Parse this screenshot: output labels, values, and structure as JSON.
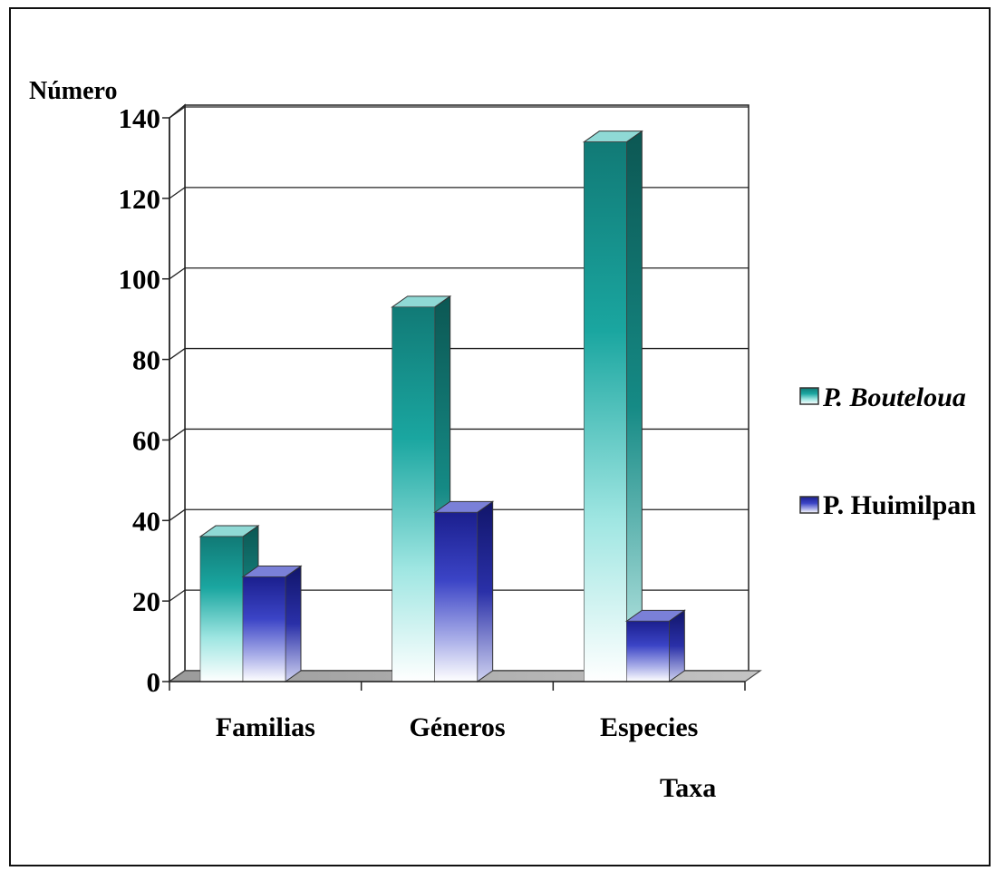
{
  "chart_data": {
    "type": "bar",
    "title": "",
    "ylabel": "Número",
    "xlabel": "Taxa",
    "categories": [
      "Familias",
      "Géneros",
      "Especies"
    ],
    "series": [
      {
        "name": "P. Bouteloua",
        "values": [
          36,
          93,
          134
        ],
        "color": "#1a8c86"
      },
      {
        "name": "P. Huimilpan",
        "values": [
          26,
          42,
          15
        ],
        "color": "#2a30a8"
      }
    ],
    "ylim": [
      0,
      140
    ],
    "yticks": [
      "0",
      "20",
      "40",
      "60",
      "80",
      "100",
      "120",
      "140"
    ],
    "grid": true,
    "legend": "right",
    "style": "3d"
  }
}
